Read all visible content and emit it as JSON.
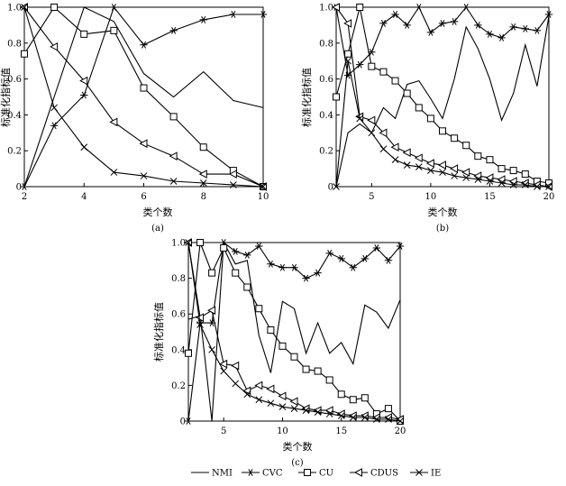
{
  "legend": [
    {
      "name": "NMI",
      "marker": "none"
    },
    {
      "name": "CVC",
      "marker": "asterisk"
    },
    {
      "name": "CU",
      "marker": "square"
    },
    {
      "name": "CDUS",
      "marker": "triangle"
    },
    {
      "name": "IE",
      "marker": "x"
    }
  ],
  "chart_data": [
    {
      "type": "line",
      "caption": "(a)",
      "xlabel": "类个数",
      "ylabel": "标准化指标值",
      "xlim": [
        2,
        10
      ],
      "ylim": [
        0,
        1.0
      ],
      "xticks": [
        "2",
        "4",
        "6",
        "8",
        "10"
      ],
      "yticks": [
        "0",
        "0.2",
        "0.4",
        "0.6",
        "0.8",
        "1.0"
      ],
      "x": [
        2,
        3,
        4,
        5,
        6,
        7,
        8,
        9,
        10
      ],
      "series": [
        {
          "name": "NMI",
          "values": [
            0.0,
            0.5,
            1.0,
            0.92,
            0.63,
            0.5,
            0.64,
            0.48,
            0.44
          ]
        },
        {
          "name": "CVC",
          "values": [
            0.0,
            0.34,
            0.51,
            1.0,
            0.79,
            0.87,
            0.93,
            0.96,
            0.96
          ]
        },
        {
          "name": "CU",
          "values": [
            0.74,
            1.0,
            0.85,
            0.87,
            0.55,
            0.39,
            0.22,
            0.09,
            0.0
          ]
        },
        {
          "name": "CDUS",
          "values": [
            1.0,
            0.78,
            0.59,
            0.36,
            0.24,
            0.17,
            0.07,
            0.07,
            0.0
          ]
        },
        {
          "name": "IE",
          "values": [
            1.0,
            0.44,
            0.22,
            0.08,
            0.06,
            0.03,
            0.02,
            0.01,
            0.0
          ]
        }
      ]
    },
    {
      "type": "line",
      "caption": "(b)",
      "xlabel": "类个数",
      "ylabel": "标准化指标值",
      "xlim": [
        2,
        20
      ],
      "ylim": [
        0,
        1.0
      ],
      "xticks": [
        "5",
        "10",
        "15",
        "20"
      ],
      "yticks": [
        "0",
        "0.2",
        "0.4",
        "0.6",
        "0.8",
        "1.0"
      ],
      "x": [
        2,
        3,
        4,
        5,
        6,
        7,
        8,
        9,
        10,
        11,
        12,
        13,
        14,
        15,
        16,
        17,
        18,
        19,
        20
      ],
      "series": [
        {
          "name": "NMI",
          "values": [
            0.0,
            0.3,
            0.35,
            0.3,
            0.44,
            0.38,
            0.57,
            0.59,
            0.49,
            0.38,
            0.6,
            0.89,
            0.77,
            0.6,
            0.37,
            0.52,
            0.79,
            0.56,
            0.95
          ]
        },
        {
          "name": "CVC",
          "values": [
            1.0,
            0.62,
            0.68,
            0.75,
            0.91,
            0.96,
            0.9,
            1.0,
            0.86,
            0.91,
            0.92,
            1.0,
            0.9,
            0.85,
            0.83,
            0.89,
            0.88,
            0.87,
            0.96
          ]
        },
        {
          "name": "CU",
          "values": [
            0.5,
            0.74,
            1.0,
            0.67,
            0.64,
            0.59,
            0.52,
            0.44,
            0.38,
            0.31,
            0.27,
            0.23,
            0.17,
            0.15,
            0.1,
            0.09,
            0.07,
            0.03,
            0.02
          ]
        },
        {
          "name": "CDUS",
          "values": [
            1.0,
            0.91,
            0.39,
            0.37,
            0.3,
            0.22,
            0.19,
            0.16,
            0.13,
            0.12,
            0.1,
            0.08,
            0.06,
            0.05,
            0.04,
            0.03,
            0.02,
            0.01,
            0.0
          ]
        },
        {
          "name": "IE",
          "values": [
            0.0,
            0.7,
            0.38,
            0.3,
            0.21,
            0.15,
            0.12,
            0.11,
            0.09,
            0.08,
            0.06,
            0.05,
            0.04,
            0.03,
            0.02,
            0.01,
            0.01,
            0.0,
            0.0
          ]
        }
      ]
    },
    {
      "type": "line",
      "caption": "(c)",
      "xlabel": "类个数",
      "ylabel": "标准化指标值",
      "xlim": [
        2,
        20
      ],
      "ylim": [
        0,
        1.0
      ],
      "xticks": [
        "5",
        "10",
        "15",
        "20"
      ],
      "yticks": [
        "0",
        "0.2",
        "0.4",
        "0.6",
        "0.8",
        "1.0"
      ],
      "x": [
        2,
        3,
        4,
        5,
        6,
        7,
        8,
        9,
        10,
        11,
        12,
        13,
        14,
        15,
        16,
        17,
        18,
        19,
        20
      ],
      "series": [
        {
          "name": "NMI",
          "values": [
            0.57,
            0.59,
            0.0,
            1.0,
            0.88,
            0.9,
            0.48,
            0.27,
            0.67,
            0.63,
            0.38,
            0.55,
            0.38,
            0.44,
            0.32,
            0.65,
            0.61,
            0.52,
            0.68
          ]
        },
        {
          "name": "CVC",
          "values": [
            0.0,
            0.55,
            0.55,
            1.0,
            0.95,
            0.93,
            0.98,
            0.88,
            0.86,
            0.86,
            0.8,
            0.83,
            0.94,
            0.91,
            0.86,
            0.91,
            0.97,
            0.9,
            0.98
          ]
        },
        {
          "name": "CU",
          "values": [
            0.38,
            1.0,
            0.83,
            0.97,
            0.83,
            0.75,
            0.63,
            0.51,
            0.42,
            0.36,
            0.29,
            0.28,
            0.23,
            0.15,
            0.12,
            0.13,
            0.04,
            0.07,
            0.0
          ]
        },
        {
          "name": "CDUS",
          "values": [
            1.0,
            0.58,
            0.62,
            0.32,
            0.31,
            0.17,
            0.2,
            0.18,
            0.14,
            0.11,
            0.07,
            0.06,
            0.06,
            0.04,
            0.03,
            0.03,
            0.02,
            0.02,
            0.01
          ]
        },
        {
          "name": "IE",
          "values": [
            1.0,
            0.54,
            0.4,
            0.28,
            0.21,
            0.15,
            0.12,
            0.1,
            0.08,
            0.07,
            0.06,
            0.05,
            0.04,
            0.03,
            0.02,
            0.02,
            0.01,
            0.01,
            0.0
          ]
        }
      ]
    }
  ]
}
